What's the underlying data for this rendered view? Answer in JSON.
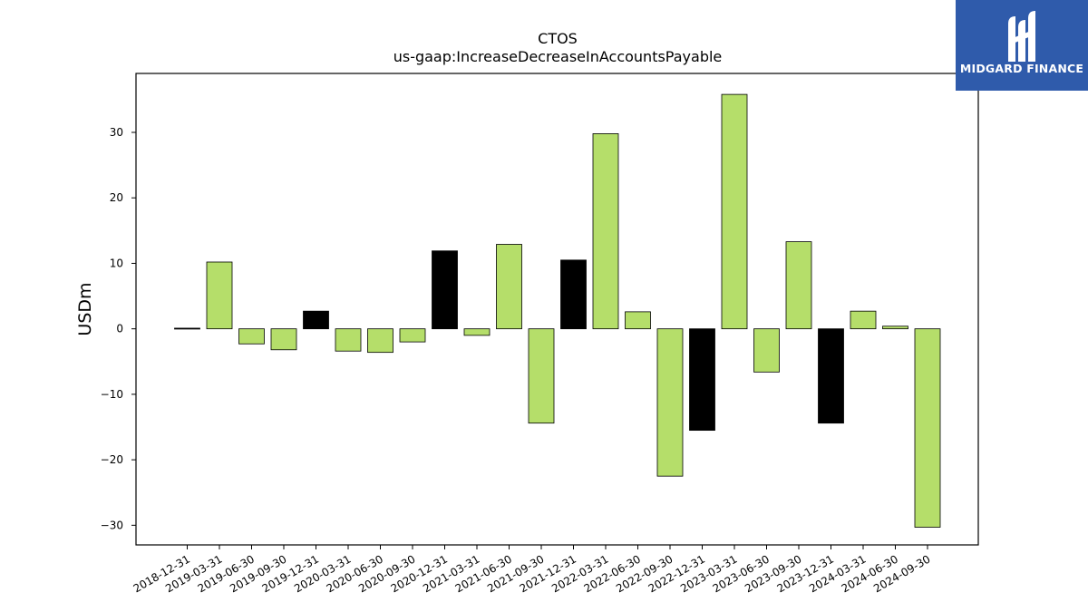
{
  "chart_data": {
    "type": "bar",
    "title": "CTOS",
    "subtitle": "us-gaap:IncreaseDecreaseInAccountsPayable",
    "xlabel": "",
    "ylabel": "USDm",
    "ylim": [
      -33,
      39
    ],
    "yticks": [
      -30,
      -20,
      -10,
      0,
      10,
      20,
      30
    ],
    "grid": false,
    "colors": {
      "quarter": "#b5de6a",
      "year_end": "#000000",
      "edge": "#000000"
    },
    "categories": [
      "2018-12-31",
      "2019-03-31",
      "2019-06-30",
      "2019-09-30",
      "2019-12-31",
      "2020-03-31",
      "2020-06-30",
      "2020-09-30",
      "2020-12-31",
      "2021-03-31",
      "2021-06-30",
      "2021-09-30",
      "2021-12-31",
      "2022-03-31",
      "2022-06-30",
      "2022-09-30",
      "2022-12-31",
      "2023-03-31",
      "2023-06-30",
      "2023-09-30",
      "2023-12-31",
      "2024-03-31",
      "2024-06-30",
      "2024-09-30"
    ],
    "values": [
      0.1,
      10.2,
      -2.3,
      -3.2,
      2.7,
      -3.4,
      -3.6,
      -2.0,
      11.9,
      -1.0,
      12.9,
      -14.4,
      10.5,
      29.8,
      2.6,
      -22.5,
      -15.5,
      35.8,
      -6.6,
      13.3,
      -14.4,
      2.7,
      0.4,
      -30.3
    ]
  },
  "logo": {
    "text": "MIDGARD FINANCE"
  }
}
